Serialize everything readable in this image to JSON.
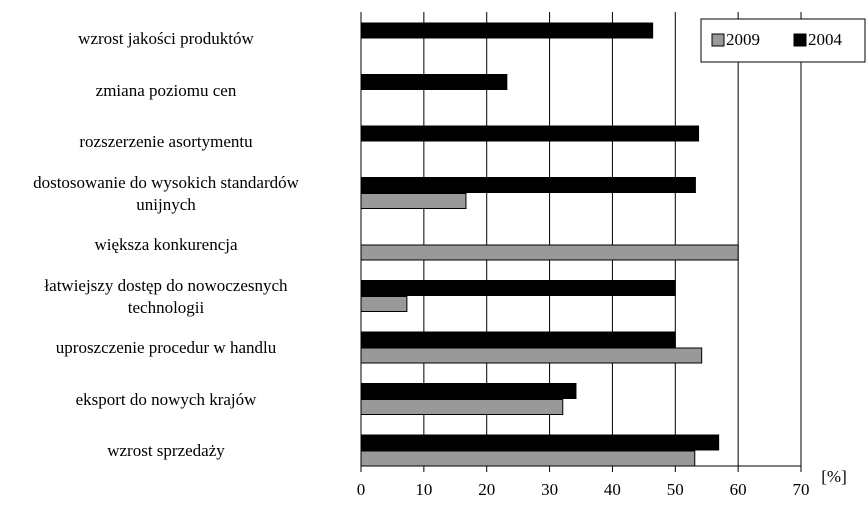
{
  "chart_data": {
    "type": "bar",
    "orientation": "horizontal",
    "categories": [
      "wzrost jakości produktów",
      "zmiana poziomu cen",
      "rozszerzenie asortymentu",
      "dostosowanie do wysokich standardów\nunijnych",
      "większa konkurencja",
      "łatwiejszy dostęp do nowoczesnych\ntechnologii",
      "uproszczenie procedur w handlu",
      "eksport do nowych krajów",
      "wzrost sprzedaży"
    ],
    "series": [
      {
        "name": "2009",
        "color": "#999999",
        "values": [
          null,
          null,
          null,
          16.7,
          60,
          7.3,
          54.2,
          32.1,
          53.1
        ]
      },
      {
        "name": "2004",
        "color": "#000000",
        "values": [
          46.4,
          23.2,
          53.7,
          53.2,
          null,
          50,
          50,
          34.2,
          56.9
        ]
      }
    ],
    "xlim": [
      0,
      70
    ],
    "xticks": [
      0,
      10,
      20,
      30,
      40,
      50,
      60,
      70
    ],
    "xlabel": "[%]",
    "grid": true,
    "legend": "top-right"
  }
}
